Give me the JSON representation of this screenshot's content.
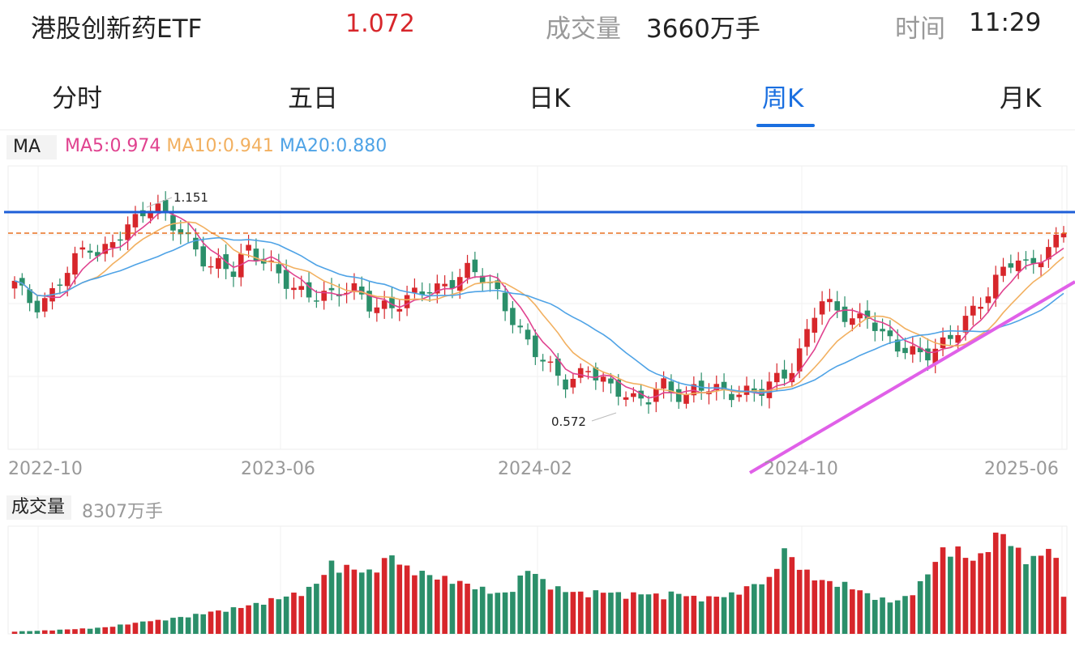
{
  "header": {
    "name": "港股创新药ETF",
    "price": "1.072",
    "volume_label": "成交量",
    "volume_value": "3660万手",
    "time_label": "时间",
    "time_value": "11:29"
  },
  "tabs": [
    {
      "label": "分时",
      "active": false
    },
    {
      "label": "五日",
      "active": false
    },
    {
      "label": "日K",
      "active": false
    },
    {
      "label": "周K",
      "active": true
    },
    {
      "label": "月K",
      "active": false
    }
  ],
  "colors": {
    "up": "#d7262b",
    "down": "#2b8f6a",
    "ma5": "#e0428f",
    "ma10": "#f2b060",
    "ma20": "#4fa3e6",
    "accent": "#1a6fe0",
    "resistance": "#1e5fd8",
    "dashed": "#e87020",
    "trend": "#e060e8"
  },
  "ma_legend": {
    "tag": "MA",
    "ma5": "MA5:0.974",
    "ma10": "MA10:0.941",
    "ma20": "MA20:0.880"
  },
  "volume_legend": {
    "tag": "成交量",
    "value": "8307万手"
  },
  "chart_data": {
    "type": "candlestick",
    "x_labels": [
      "2022-10",
      "2023-06",
      "2024-02",
      "2024-10",
      "2025-06"
    ],
    "price_ylim": [
      0.48,
      1.22
    ],
    "annotations": {
      "high": "1.151",
      "low": "0.572"
    },
    "resistance_level": 1.11,
    "dashed_level": 1.072,
    "close_path": [
      0.92,
      0.86,
      0.84,
      0.88,
      0.95,
      0.99,
      1.02,
      0.97,
      1.01,
      1.05,
      1.09,
      1.13,
      1.11,
      1.06,
      1.02,
      0.99,
      0.96,
      0.98,
      0.95,
      1.0,
      0.97,
      0.95,
      0.93,
      0.91,
      0.89,
      0.88,
      0.87,
      0.89,
      0.9,
      0.87,
      0.86,
      0.85,
      0.86,
      0.88,
      0.9,
      0.91,
      0.93,
      0.95,
      0.93,
      0.9,
      0.86,
      0.82,
      0.77,
      0.73,
      0.68,
      0.64,
      0.66,
      0.7,
      0.68,
      0.64,
      0.62,
      0.59,
      0.61,
      0.66,
      0.64,
      0.62,
      0.64,
      0.63,
      0.62,
      0.63,
      0.64,
      0.64,
      0.65,
      0.66,
      0.69,
      0.79,
      0.89,
      0.86,
      0.83,
      0.8,
      0.82,
      0.78,
      0.77,
      0.75,
      0.73,
      0.72,
      0.74,
      0.78,
      0.83,
      0.87,
      0.9,
      0.94,
      0.97,
      0.95,
      0.99,
      1.02,
      1.06
    ],
    "volume_ylim": [
      0,
      8307
    ],
    "volume_series": [
      200,
      220,
      260,
      300,
      350,
      400,
      450,
      500,
      600,
      800,
      900,
      1100,
      1100,
      1300,
      1400,
      1600,
      1800,
      1900,
      2100,
      2300,
      2500,
      2800,
      3000,
      3300,
      3600,
      4400,
      5800,
      5500,
      5300,
      5000,
      5800,
      6500,
      5400,
      5200,
      4800,
      4600,
      4400,
      4100,
      3800,
      3500,
      3200,
      3800,
      5500,
      4600,
      3900,
      3600,
      3400,
      3300,
      3500,
      3400,
      3200,
      3300,
      3300,
      3100,
      3400,
      3200,
      2900,
      3000,
      3100,
      3300,
      3800,
      4200,
      4500,
      7000,
      5900,
      5000,
      4400,
      4200,
      4100,
      3700,
      3200,
      2900,
      2600,
      3000,
      3800,
      5200,
      6800,
      7200,
      6300,
      6000,
      7800,
      8307,
      7000,
      6200,
      6200,
      7600,
      3300
    ]
  }
}
